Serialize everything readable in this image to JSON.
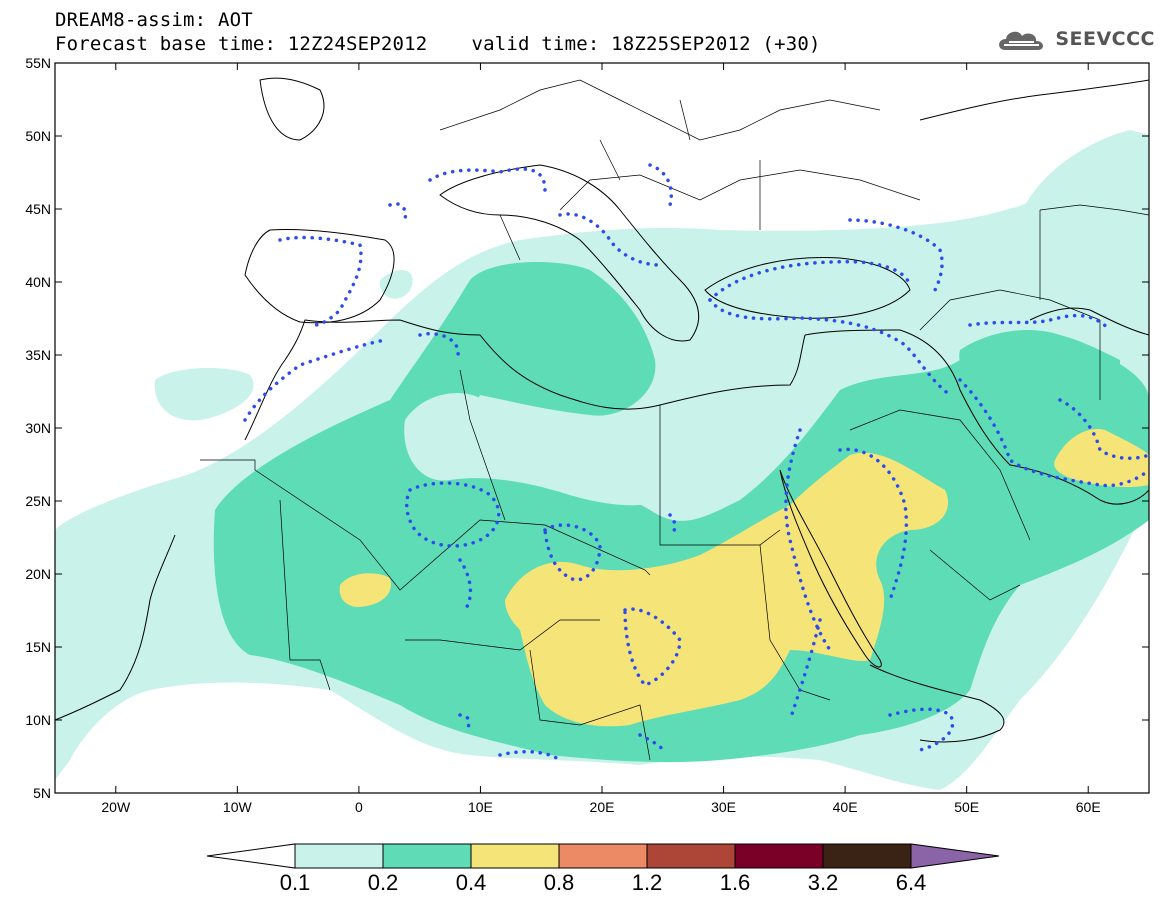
{
  "header": {
    "line1": "DREAM8-assim: AOT",
    "base_time": "Forecast base time: 12Z24SEP2012",
    "valid_time": "valid time: 18Z25SEP2012 (+30)"
  },
  "logo": {
    "text": "SEEVCCC",
    "icon": "cloud-logo-icon"
  },
  "map": {
    "lon_range": [
      -25,
      65
    ],
    "lat_range": [
      5,
      55
    ],
    "lat_ticks": [
      "5N",
      "10N",
      "15N",
      "20N",
      "25N",
      "30N",
      "35N",
      "40N",
      "45N",
      "50N",
      "55N"
    ],
    "lon_ticks": [
      "20W",
      "10W",
      "0",
      "10E",
      "20E",
      "30E",
      "40E",
      "50E",
      "60E"
    ]
  },
  "colorbar": {
    "labels": [
      "0.1",
      "0.2",
      "0.4",
      "0.8",
      "1.2",
      "1.6",
      "3.2",
      "6.4"
    ],
    "colors": [
      "#ffffff",
      "#c8f2ea",
      "#5ddcb5",
      "#f5e478",
      "#eb8a64",
      "#ad4637",
      "#7a0028",
      "#3a2214",
      "#8a64a6"
    ]
  }
}
